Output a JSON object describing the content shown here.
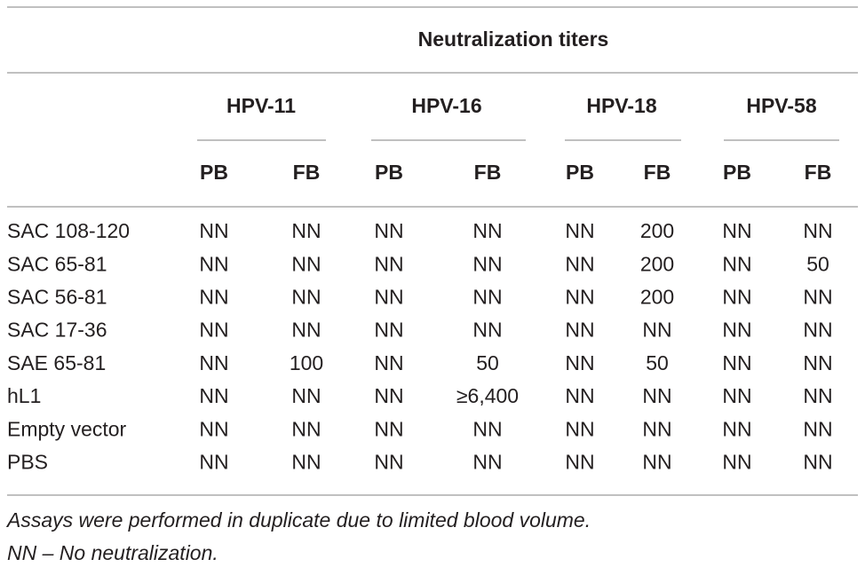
{
  "table": {
    "title": "Neutralization titers",
    "groups": [
      "HPV-11",
      "HPV-16",
      "HPV-18",
      "HPV-58"
    ],
    "subheaders": [
      "PB",
      "FB",
      "PB",
      "FB",
      "PB",
      "FB",
      "PB",
      "FB"
    ],
    "rows": [
      [
        "SAC 108-120",
        "NN",
        "NN",
        "NN",
        "NN",
        "NN",
        "200",
        "NN",
        "NN"
      ],
      [
        "SAC 65-81",
        "NN",
        "NN",
        "NN",
        "NN",
        "NN",
        "200",
        "NN",
        "50"
      ],
      [
        "SAC 56-81",
        "NN",
        "NN",
        "NN",
        "NN",
        "NN",
        "200",
        "NN",
        "NN"
      ],
      [
        "SAC 17-36",
        "NN",
        "NN",
        "NN",
        "NN",
        "NN",
        "NN",
        "NN",
        "NN"
      ],
      [
        "SAE 65-81",
        "NN",
        "100",
        "NN",
        "50",
        "NN",
        "50",
        "NN",
        "NN"
      ],
      [
        "hL1",
        "NN",
        "NN",
        "NN",
        "≥6,400",
        "NN",
        "NN",
        "NN",
        "NN"
      ],
      [
        "Empty vector",
        "NN",
        "NN",
        "NN",
        "NN",
        "NN",
        "NN",
        "NN",
        "NN"
      ],
      [
        "PBS",
        "NN",
        "NN",
        "NN",
        "NN",
        "NN",
        "NN",
        "NN",
        "NN"
      ]
    ],
    "footnotes": [
      "Assays were performed in duplicate due to limited blood volume.",
      "NN – No neutralization."
    ]
  }
}
